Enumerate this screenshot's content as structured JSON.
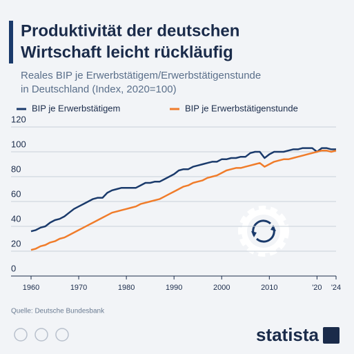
{
  "chart_data": {
    "type": "line",
    "title_lines": [
      "Produktivität der deutschen",
      "Wirtschaft leicht rückläufig"
    ],
    "subtitle_lines": [
      "Reales BIP je Erwerbstätigem/Erwerbstätigenstunde",
      "in Deutschland (Index, 2020=100)"
    ],
    "x": [
      1960,
      1961,
      1962,
      1963,
      1964,
      1965,
      1966,
      1967,
      1968,
      1969,
      1970,
      1971,
      1972,
      1973,
      1974,
      1975,
      1976,
      1977,
      1978,
      1979,
      1980,
      1981,
      1982,
      1983,
      1984,
      1985,
      1986,
      1987,
      1988,
      1989,
      1990,
      1991,
      1992,
      1993,
      1994,
      1995,
      1996,
      1997,
      1998,
      1999,
      2000,
      2001,
      2002,
      2003,
      2004,
      2005,
      2006,
      2007,
      2008,
      2009,
      2010,
      2011,
      2012,
      2013,
      2014,
      2015,
      2016,
      2017,
      2018,
      2019,
      2020,
      2021,
      2022,
      2023,
      2024
    ],
    "series": [
      {
        "name": "BIP je Erwerbstätigem",
        "color": "#1a3a6b",
        "values": [
          36,
          37,
          39,
          40,
          43,
          45,
          46,
          48,
          51,
          54,
          56,
          58,
          60,
          62,
          63,
          63,
          67,
          69,
          70,
          71,
          71,
          71,
          71,
          73,
          75,
          75,
          76,
          76,
          78,
          80,
          82,
          85,
          86,
          86,
          88,
          89,
          90,
          91,
          92,
          92,
          94,
          94,
          95,
          95,
          96,
          96,
          99,
          100,
          100,
          95,
          98,
          100,
          100,
          100,
          101,
          102,
          102,
          103,
          103,
          103,
          100,
          103,
          103,
          102,
          102
        ]
      },
      {
        "name": "BIP je Erwerbstätigenstunde",
        "color": "#f07c2a",
        "values": [
          21,
          22,
          24,
          25,
          27,
          28,
          30,
          31,
          33,
          35,
          37,
          39,
          41,
          43,
          45,
          47,
          49,
          51,
          52,
          53,
          54,
          55,
          56,
          58,
          59,
          60,
          61,
          62,
          64,
          66,
          68,
          70,
          72,
          73,
          75,
          76,
          77,
          79,
          80,
          81,
          83,
          85,
          86,
          87,
          87,
          88,
          89,
          90,
          91,
          88,
          90,
          92,
          93,
          94,
          94,
          95,
          96,
          97,
          98,
          99,
          100,
          101,
          101,
          100,
          101
        ]
      }
    ],
    "xlim": [
      1960,
      2024
    ],
    "xticks": [
      1960,
      1970,
      1980,
      1990,
      2000,
      2010,
      {
        "value": 2020,
        "label": "'20"
      },
      {
        "value": 2024,
        "label": "'24"
      }
    ],
    "ylim": [
      0,
      120
    ],
    "yticks": [
      0,
      20,
      40,
      60,
      80,
      100,
      120
    ],
    "grid": true,
    "source": "Quelle: Deutsche Bundesbank",
    "brand": "statista"
  }
}
